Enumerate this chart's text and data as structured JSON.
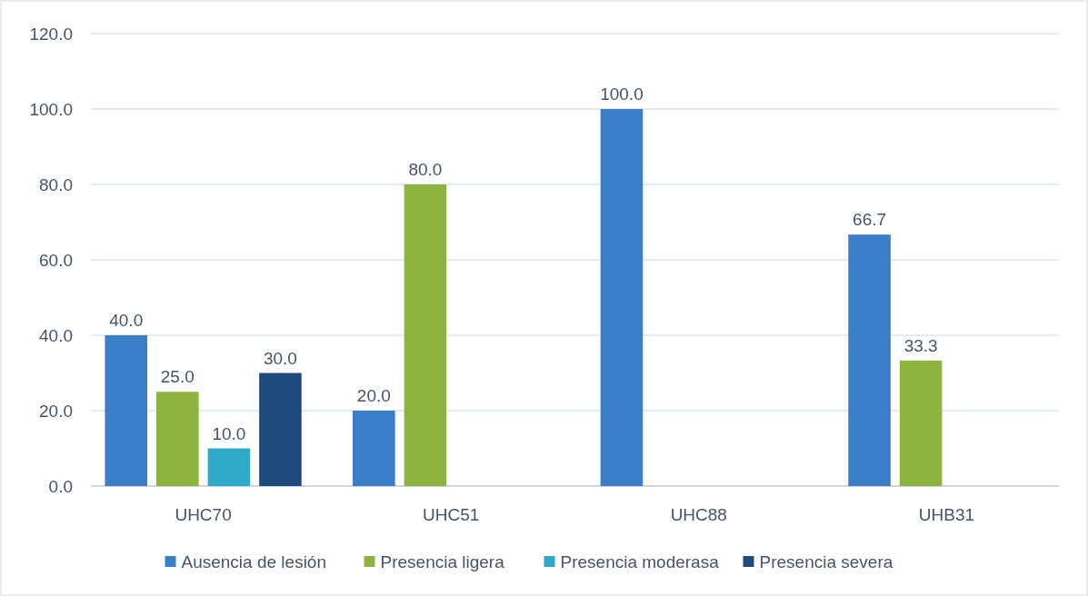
{
  "chart_data": {
    "type": "bar",
    "categories": [
      "UHC70",
      "UHC51",
      "UHC88",
      "UHB31"
    ],
    "series": [
      {
        "name": "Ausencia de lesión",
        "color": "#3a7dc9",
        "values": [
          40,
          20,
          100,
          66.7
        ],
        "value_labels": [
          "40.0",
          "20.0",
          "100.0",
          "66.7"
        ]
      },
      {
        "name": "Presencia ligera",
        "color": "#8db43e",
        "values": [
          25,
          80,
          null,
          33.3
        ],
        "value_labels": [
          "25.0",
          "80.0",
          null,
          "33.3"
        ]
      },
      {
        "name": "Presencia moderasa",
        "color": "#2eaac8",
        "values": [
          10,
          null,
          null,
          null
        ],
        "value_labels": [
          "10.0",
          null,
          null,
          null
        ]
      },
      {
        "name": "Presencia severa",
        "color": "#1f4a7e",
        "values": [
          30,
          null,
          null,
          null
        ],
        "value_labels": [
          "30.0",
          null,
          null,
          null
        ]
      }
    ],
    "ylim": [
      0,
      120
    ],
    "yticks": [
      {
        "value": 0,
        "label": "0.0"
      },
      {
        "value": 20,
        "label": "20.0"
      },
      {
        "value": 40,
        "label": "40.0"
      },
      {
        "value": 60,
        "label": "60.0"
      },
      {
        "value": 80,
        "label": "80.0"
      },
      {
        "value": 100,
        "label": "100.0"
      },
      {
        "value": 120,
        "label": "120.0"
      }
    ],
    "grid": "y",
    "legend": "bottom"
  }
}
